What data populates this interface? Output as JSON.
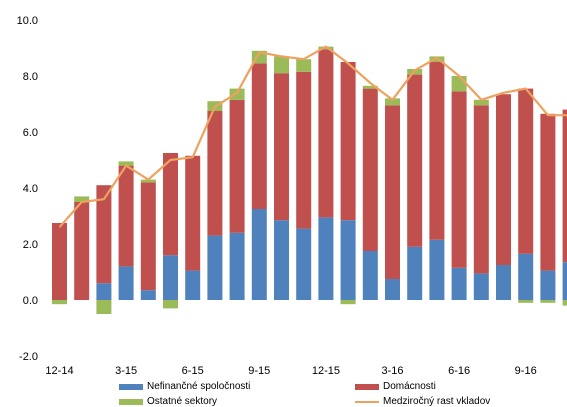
{
  "chart_data": {
    "type": "bar",
    "stacked": true,
    "categories": [
      "12-14",
      "",
      "",
      "3-15",
      "",
      "",
      "6-15",
      "",
      "",
      "9-15",
      "",
      "",
      "12-15",
      "",
      "",
      "3-16",
      "",
      "",
      "6-16",
      "",
      "",
      "9-16",
      "",
      ""
    ],
    "series": [
      {
        "name": "Nefinančné spoločnosti",
        "type": "bar",
        "color": "#4f81bd",
        "values": [
          0.0,
          0.0,
          0.6,
          1.2,
          0.35,
          1.6,
          1.05,
          2.3,
          2.4,
          3.25,
          2.85,
          2.55,
          2.95,
          2.85,
          1.75,
          0.75,
          1.9,
          2.15,
          1.15,
          0.95,
          1.25,
          1.65,
          1.05,
          1.35
        ]
      },
      {
        "name": "Domácnosti",
        "type": "bar",
        "color": "#c0504d",
        "values": [
          2.75,
          3.5,
          3.5,
          3.6,
          3.85,
          3.65,
          4.1,
          4.45,
          4.75,
          5.2,
          5.25,
          5.6,
          6.0,
          5.65,
          5.8,
          6.2,
          6.15,
          6.35,
          6.3,
          6.0,
          6.1,
          5.9,
          5.6,
          5.45
        ]
      },
      {
        "name": "Ostatné sektory",
        "type": "bar",
        "color": "#9bbb59",
        "values": [
          -0.15,
          0.2,
          -0.5,
          0.15,
          0.1,
          -0.3,
          0.0,
          0.35,
          0.4,
          0.45,
          0.6,
          0.45,
          0.1,
          -0.15,
          0.1,
          0.25,
          0.2,
          0.2,
          0.55,
          0.2,
          0.0,
          -0.1,
          -0.1,
          -0.2
        ]
      },
      {
        "name": "Medziročný rast vkladov",
        "type": "line",
        "color": "#eda25f",
        "values": [
          2.6,
          3.5,
          3.6,
          4.8,
          4.3,
          5.0,
          5.1,
          6.9,
          7.4,
          8.85,
          8.7,
          8.6,
          9.05,
          8.45,
          7.75,
          7.15,
          8.2,
          8.65,
          8.0,
          7.15,
          7.4,
          7.55,
          6.6,
          6.6
        ]
      }
    ],
    "ylim": [
      -2,
      10
    ],
    "yticks": [
      {
        "value": 10,
        "label": "10.0"
      },
      {
        "value": 8,
        "label": "8.0"
      },
      {
        "value": 6,
        "label": "6.0"
      },
      {
        "value": 4,
        "label": "4.0"
      },
      {
        "value": 2,
        "label": "2.0"
      },
      {
        "value": 0,
        "label": "0.0"
      },
      {
        "value": -2,
        "label": "-2.0"
      }
    ],
    "grid": false,
    "legend": "bottom"
  }
}
